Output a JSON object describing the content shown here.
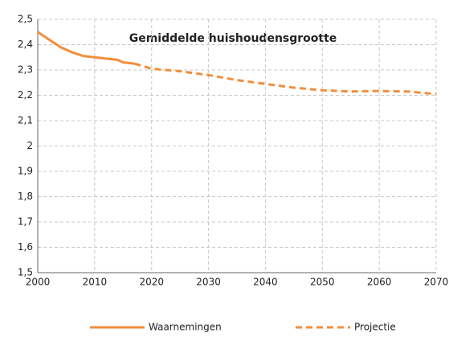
{
  "chart_data": {
    "type": "line",
    "title": "Gemiddelde huishoudensgrootte",
    "x": [
      2000,
      2002,
      2004,
      2006,
      2008,
      2010,
      2012,
      2014,
      2015,
      2017,
      2020,
      2025,
      2030,
      2035,
      2040,
      2045,
      2050,
      2055,
      2060,
      2065,
      2070
    ],
    "series": [
      {
        "name": "Waarnemingen",
        "color": "#f28e3c",
        "style": "solid",
        "values": [
          2.45,
          2.42,
          2.39,
          2.37,
          2.355,
          2.35,
          2.345,
          2.34,
          2.33,
          2.325,
          null,
          null,
          null,
          null,
          null,
          null,
          null,
          null,
          null,
          null,
          null
        ]
      },
      {
        "name": "Projectie",
        "color": "#f28e3c",
        "style": "dashed",
        "values": [
          null,
          null,
          null,
          null,
          null,
          null,
          null,
          null,
          null,
          2.325,
          2.305,
          2.295,
          2.28,
          2.26,
          2.245,
          2.23,
          2.22,
          2.215,
          2.217,
          2.215,
          2.205
        ]
      }
    ],
    "xlim": [
      2000,
      2070
    ],
    "xticks": [
      2000,
      2010,
      2020,
      2030,
      2040,
      2050,
      2060,
      2070
    ],
    "ylim": [
      1.5,
      2.5
    ],
    "yticks": [
      {
        "value": 1.5,
        "label": "1,5"
      },
      {
        "value": 1.6,
        "label": "1,6"
      },
      {
        "value": 1.7,
        "label": "1,7"
      },
      {
        "value": 1.8,
        "label": "1,8"
      },
      {
        "value": 1.9,
        "label": "1,9"
      },
      2,
      {
        "value": 2.1,
        "label": "2,1"
      },
      {
        "value": 2.2,
        "label": "2,2"
      },
      {
        "value": 2.3,
        "label": "2,3"
      },
      {
        "value": 2.4,
        "label": "2,4"
      },
      {
        "value": 2.5,
        "label": "2,5"
      }
    ],
    "grid": true
  }
}
